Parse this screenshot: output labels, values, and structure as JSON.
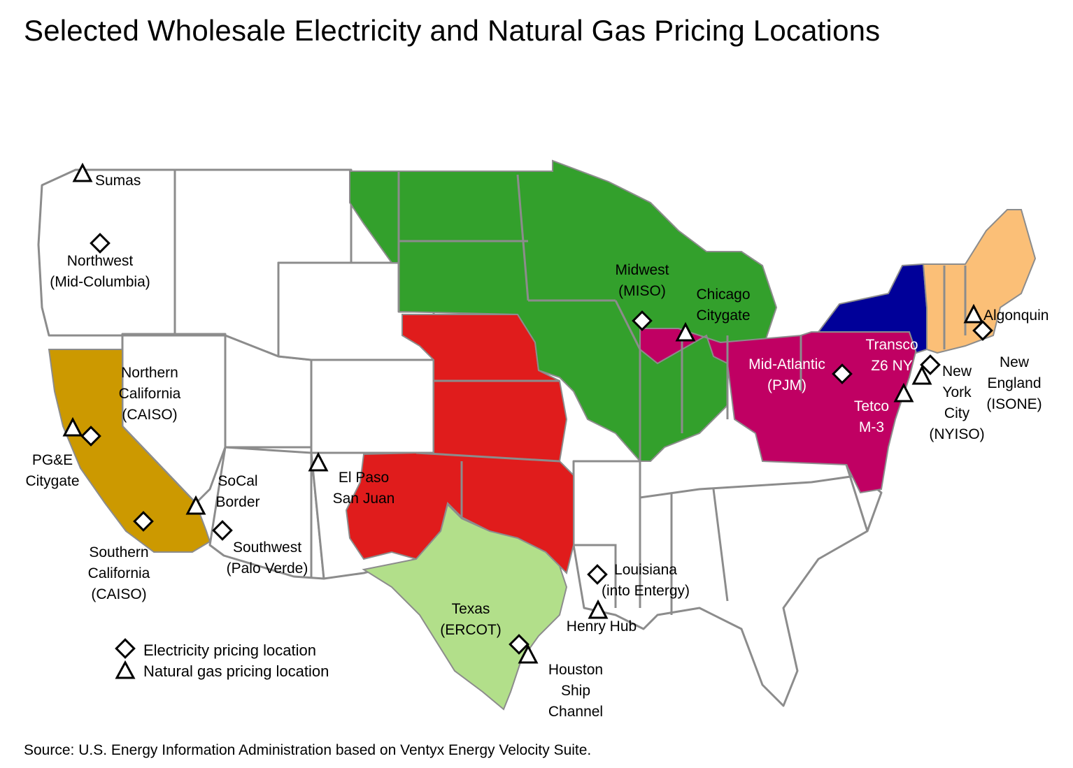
{
  "title": "Selected Wholesale Electricity and Natural Gas Pricing Locations",
  "source": "Source: U.S. Energy Information Administration based on Ventyx Energy Velocity Suite.",
  "colors": {
    "caiso": "#cc9900",
    "spp": "#e01c1c",
    "miso": "#33a02c",
    "pjm": "#c00063",
    "nyiso": "#000099",
    "isone": "#fbbf77",
    "ercot": "#b2df8a",
    "land": "#ffffff",
    "border": "#8c8c8c"
  },
  "legend": {
    "electricity": "Electricity pricing location",
    "gas": "Natural gas pricing location"
  },
  "labels": {
    "sumas": [
      "Sumas"
    ],
    "northwest": [
      "Northwest",
      "(Mid-Columbia)"
    ],
    "northern_california": [
      "Northern",
      "California",
      "(CAISO)"
    ],
    "pge": [
      "PG&E",
      "Citygate"
    ],
    "socal_border": [
      "SoCal",
      "Border"
    ],
    "southern_california": [
      "Southern",
      "California",
      "(CAISO)"
    ],
    "southwest": [
      "Southwest",
      "(Palo Verde)"
    ],
    "el_paso": [
      "El Paso",
      "San Juan"
    ],
    "midwest": [
      "Midwest",
      "(MISO)"
    ],
    "chicago": [
      "Chicago",
      "Citygate"
    ],
    "mid_atlantic": [
      "Mid-Atlantic",
      "(PJM)"
    ],
    "transco": [
      "Transco",
      "Z6 NY"
    ],
    "tetco": [
      "Tetco",
      "M-3"
    ],
    "new_york": [
      "New",
      "York",
      "City",
      "(NYISO)"
    ],
    "algonquin": [
      "Algonquin"
    ],
    "new_england": [
      "New",
      "England",
      "(ISONE)"
    ],
    "texas": [
      "Texas",
      "(ERCOT)"
    ],
    "louisiana": [
      "Louisiana",
      "(into Entergy)"
    ],
    "henry_hub": [
      "Henry Hub"
    ],
    "houston": [
      "Houston",
      "Ship",
      "Channel"
    ]
  }
}
